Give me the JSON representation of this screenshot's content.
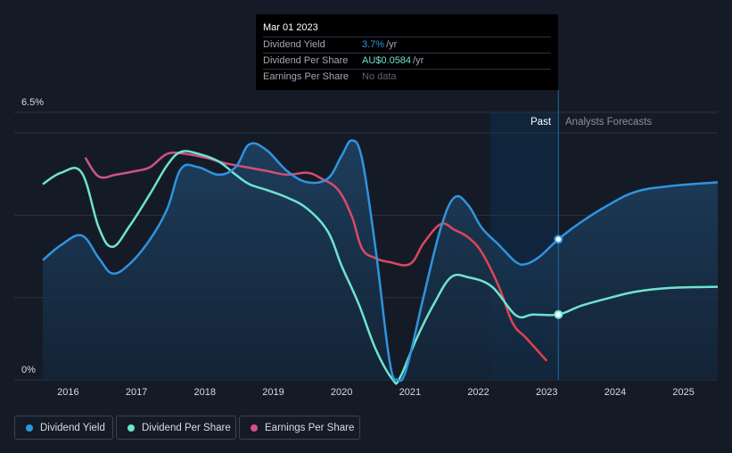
{
  "tooltip": {
    "date": "Mar 01 2023",
    "rows": [
      {
        "label": "Dividend Yield",
        "value": "3.7%",
        "unit": "/yr",
        "color": "#2f94e0"
      },
      {
        "label": "Dividend Per Share",
        "value": "AU$0.0584",
        "unit": "/yr",
        "color": "#6ee4cf"
      },
      {
        "label": "Earnings Per Share",
        "value": "No data",
        "unit": "",
        "color": "#5d636e"
      }
    ]
  },
  "sections": {
    "past": "Past",
    "forecast": "Analysts Forecasts"
  },
  "legend": [
    {
      "label": "Dividend Yield",
      "color": "#2f94e0"
    },
    {
      "label": "Dividend Per Share",
      "color": "#6ee4cf"
    },
    {
      "label": "Earnings Per Share",
      "color": "#d94f8a"
    }
  ],
  "chart_data": {
    "type": "line",
    "title": "",
    "y_axis_labels": {
      "top": "6.5%",
      "bottom": "0%"
    },
    "ylim": [
      0,
      6.5
    ],
    "xlim": [
      2015.63,
      2025.5
    ],
    "x_ticks": [
      "2016",
      "2017",
      "2018",
      "2019",
      "2020",
      "2021",
      "2022",
      "2023",
      "2024",
      "2025"
    ],
    "past_region": [
      2022.17,
      2023.17
    ],
    "tooltip_x": 2023.17,
    "series": [
      {
        "name": "Dividend Yield",
        "color": "#2f94e0",
        "points": [
          [
            2015.63,
            3.15
          ],
          [
            2015.9,
            3.55
          ],
          [
            2016.2,
            3.8
          ],
          [
            2016.45,
            3.2
          ],
          [
            2016.65,
            2.8
          ],
          [
            2016.9,
            3.05
          ],
          [
            2017.2,
            3.7
          ],
          [
            2017.45,
            4.5
          ],
          [
            2017.65,
            5.55
          ],
          [
            2017.9,
            5.6
          ],
          [
            2018.2,
            5.4
          ],
          [
            2018.45,
            5.6
          ],
          [
            2018.65,
            6.2
          ],
          [
            2018.9,
            6.05
          ],
          [
            2019.2,
            5.5
          ],
          [
            2019.5,
            5.2
          ],
          [
            2019.8,
            5.3
          ],
          [
            2020.0,
            5.9
          ],
          [
            2020.15,
            6.3
          ],
          [
            2020.3,
            5.8
          ],
          [
            2020.5,
            3.4
          ],
          [
            2020.7,
            0.5
          ],
          [
            2020.82,
            0.0
          ],
          [
            2020.95,
            0.3
          ],
          [
            2021.2,
            2.2
          ],
          [
            2021.45,
            4.0
          ],
          [
            2021.65,
            4.8
          ],
          [
            2021.85,
            4.6
          ],
          [
            2022.05,
            4.0
          ],
          [
            2022.3,
            3.55
          ],
          [
            2022.55,
            3.1
          ],
          [
            2022.7,
            3.05
          ],
          [
            2022.9,
            3.25
          ],
          [
            2023.17,
            3.7
          ],
          [
            2023.5,
            4.15
          ],
          [
            2023.9,
            4.6
          ],
          [
            2024.3,
            4.95
          ],
          [
            2024.8,
            5.1
          ],
          [
            2025.5,
            5.2
          ]
        ]
      },
      {
        "name": "Dividend Per Share",
        "color": "#6ee4cf",
        "points": [
          [
            2015.63,
            5.15
          ],
          [
            2015.9,
            5.45
          ],
          [
            2016.2,
            5.45
          ],
          [
            2016.45,
            4.0
          ],
          [
            2016.65,
            3.5
          ],
          [
            2016.9,
            4.05
          ],
          [
            2017.2,
            4.9
          ],
          [
            2017.45,
            5.65
          ],
          [
            2017.65,
            6.0
          ],
          [
            2017.9,
            5.95
          ],
          [
            2018.2,
            5.75
          ],
          [
            2018.45,
            5.4
          ],
          [
            2018.65,
            5.15
          ],
          [
            2018.9,
            5.0
          ],
          [
            2019.2,
            4.8
          ],
          [
            2019.5,
            4.5
          ],
          [
            2019.8,
            3.9
          ],
          [
            2020.0,
            3.0
          ],
          [
            2020.25,
            2.0
          ],
          [
            2020.5,
            0.8
          ],
          [
            2020.75,
            0.0
          ],
          [
            2020.85,
            0.05
          ],
          [
            2021.1,
            1.1
          ],
          [
            2021.35,
            2.0
          ],
          [
            2021.6,
            2.7
          ],
          [
            2021.85,
            2.7
          ],
          [
            2022.2,
            2.45
          ],
          [
            2022.55,
            1.7
          ],
          [
            2022.8,
            1.72
          ],
          [
            2023.17,
            1.72
          ],
          [
            2023.5,
            1.95
          ],
          [
            2023.9,
            2.15
          ],
          [
            2024.3,
            2.32
          ],
          [
            2024.8,
            2.42
          ],
          [
            2025.5,
            2.45
          ]
        ]
      },
      {
        "name": "Earnings Per Share",
        "color": "#d94f8a",
        "points": [
          [
            2016.25,
            5.85
          ],
          [
            2016.45,
            5.35
          ],
          [
            2016.7,
            5.4
          ],
          [
            2017.0,
            5.5
          ],
          [
            2017.2,
            5.6
          ],
          [
            2017.45,
            5.95
          ],
          [
            2017.7,
            5.95
          ],
          [
            2018.0,
            5.85
          ],
          [
            2018.3,
            5.7
          ],
          [
            2018.6,
            5.6
          ],
          [
            2018.9,
            5.5
          ],
          [
            2019.2,
            5.4
          ],
          [
            2019.5,
            5.45
          ],
          [
            2019.7,
            5.3
          ],
          [
            2019.95,
            5.0
          ],
          [
            2020.15,
            4.3
          ],
          [
            2020.3,
            3.45
          ],
          [
            2020.5,
            3.2
          ],
          [
            2020.7,
            3.1
          ],
          [
            2021.0,
            3.05
          ],
          [
            2021.2,
            3.6
          ],
          [
            2021.45,
            4.1
          ],
          [
            2021.65,
            3.95
          ],
          [
            2021.85,
            3.75
          ],
          [
            2022.05,
            3.35
          ],
          [
            2022.3,
            2.45
          ],
          [
            2022.5,
            1.5
          ],
          [
            2022.7,
            1.1
          ],
          [
            2022.9,
            0.7
          ],
          [
            2023.0,
            0.5
          ]
        ]
      }
    ],
    "markers": [
      {
        "series": "Dividend Yield",
        "x": 2023.17,
        "y": 3.7
      },
      {
        "series": "Dividend Per Share",
        "x": 2023.17,
        "y": 1.72
      }
    ]
  }
}
